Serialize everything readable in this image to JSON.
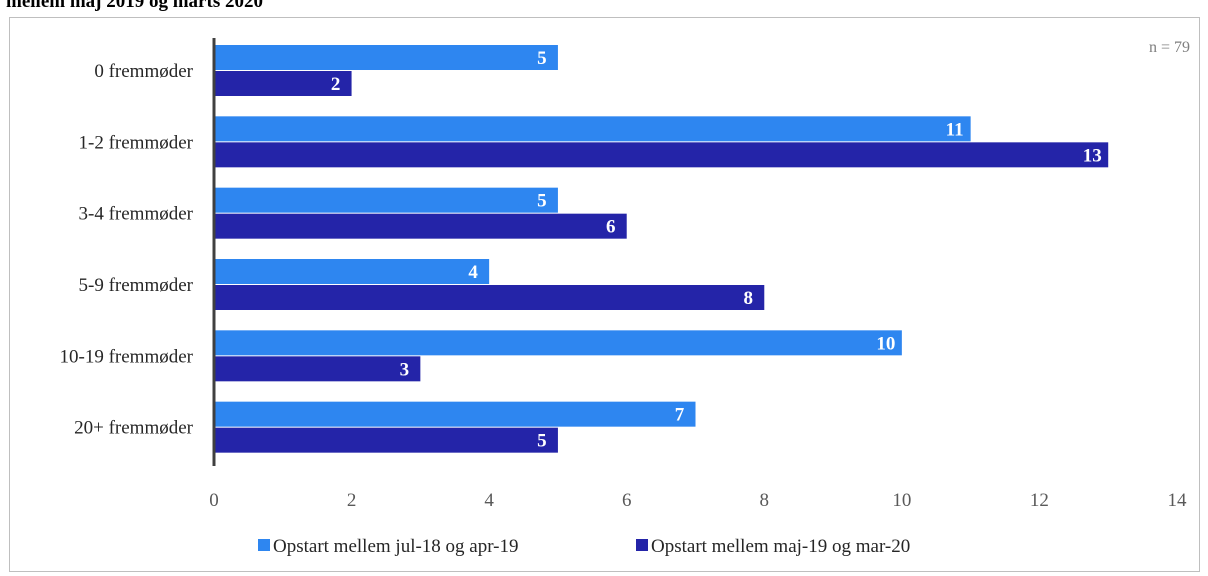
{
  "title": "mellem maj 2019 og marts 2020",
  "note": "n = 79",
  "colors": {
    "series1": "#2e86f0",
    "series2": "#2424a8",
    "axis": "#404040"
  },
  "chart_data": {
    "type": "bar",
    "orientation": "horizontal",
    "categories": [
      "0 fremmøder",
      "1-2 fremmøder",
      "3-4 fremmøder",
      "5-9 fremmøder",
      "10-19 fremmøder",
      "20+ fremmøder"
    ],
    "series": [
      {
        "name": "Opstart mellem jul-18 og apr-19",
        "values": [
          5,
          11,
          5,
          4,
          10,
          7
        ]
      },
      {
        "name": "Opstart mellem maj-19 og mar-20",
        "values": [
          2,
          13,
          6,
          8,
          3,
          5
        ]
      }
    ],
    "xlim": [
      0,
      14
    ],
    "xticks": [
      "0",
      "2",
      "4",
      "6",
      "8",
      "10",
      "12",
      "14"
    ],
    "grid": false,
    "legend_position": "bottom"
  }
}
